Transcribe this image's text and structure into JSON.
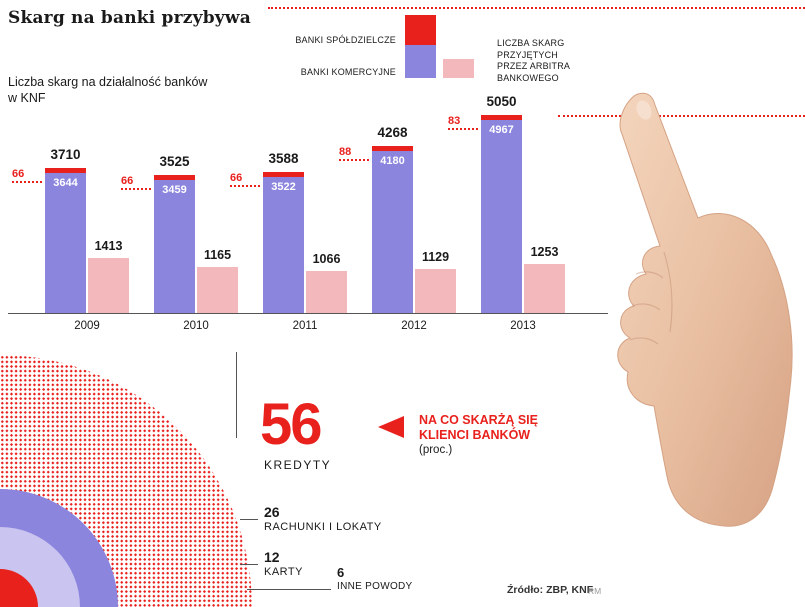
{
  "title": "Skarg na banki przybywa",
  "subtitle": "Liczba skarg na działalność banków\nw KNF",
  "legend": {
    "spoldzielcze_label": "BANKI SPÓŁDZIELCZE",
    "komercyjne_label": "BANKI KOMERCYJNE",
    "arbiter_label": "LICZBA SKARG\nPRZYJĘTYCH\nPRZEZ ARBITRA\nBANKOWEGO"
  },
  "colors": {
    "red": "#e8211d",
    "purple": "#8b85de",
    "pink": "#f2b8bc",
    "light_purple": "#c9c4f0"
  },
  "chart_data": [
    {
      "type": "bar",
      "title": "Liczba skarg na działalność banków w KNF",
      "categories": [
        "2009",
        "2010",
        "2011",
        "2012",
        "2013"
      ],
      "series": [
        {
          "name": "BANKI SPÓŁDZIELCZE",
          "color": "#e8211d",
          "values": [
            66,
            66,
            66,
            88,
            83
          ]
        },
        {
          "name": "BANKI KOMERCYJNE",
          "color": "#8b85de",
          "values": [
            3644,
            3459,
            3522,
            4180,
            4967
          ]
        },
        {
          "name": "LICZBA SKARG PRZYJĘTYCH PRZEZ ARBITRA BANKOWEGO",
          "color": "#f2b8bc",
          "values": [
            1413,
            1165,
            1066,
            1129,
            1253
          ]
        }
      ],
      "totals": [
        3710,
        3525,
        3588,
        4268,
        5050
      ],
      "ylim": [
        0,
        5200
      ],
      "grid": false,
      "legend_position": "top"
    },
    {
      "type": "pie",
      "title": "NA CO SKARŻĄ SIĘ KLIENCI BANKÓW (proc.)",
      "slices": [
        {
          "label": "KREDYTY",
          "value": 56,
          "color": "#e8211d",
          "pattern": "dots"
        },
        {
          "label": "RACHUNKI I LOKATY",
          "value": 26,
          "color": "#8b85de"
        },
        {
          "label": "KARTY",
          "value": 12,
          "color": "#c9c4f0"
        },
        {
          "label": "INNE POWODY",
          "value": 6,
          "color": "#e8211d"
        }
      ]
    }
  ],
  "callout": {
    "line1": "NA CO SKARŻĄ SIĘ",
    "line2": "KLIENCI BANKÓW",
    "note": "(proc.)"
  },
  "source": {
    "text": "Źródło: ZBP, KNF",
    "credit": "RM"
  }
}
